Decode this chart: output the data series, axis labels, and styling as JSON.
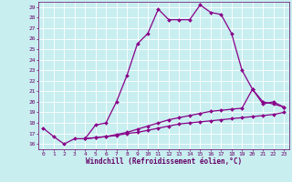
{
  "xlabel": "Windchill (Refroidissement éolien,°C)",
  "bg_color": "#c8eef0",
  "grid_color": "#ffffff",
  "line_color": "#880088",
  "xlim": [
    -0.5,
    23.5
  ],
  "ylim": [
    15.5,
    29.5
  ],
  "xticks": [
    0,
    1,
    2,
    3,
    4,
    5,
    6,
    7,
    8,
    9,
    10,
    11,
    12,
    13,
    14,
    15,
    16,
    17,
    18,
    19,
    20,
    21,
    22,
    23
  ],
  "yticks": [
    16,
    17,
    18,
    19,
    20,
    21,
    22,
    23,
    24,
    25,
    26,
    27,
    28,
    29
  ],
  "line1_x": [
    0,
    1,
    2,
    3,
    4,
    5,
    6,
    7,
    8,
    9,
    10,
    11,
    12,
    13,
    14,
    15,
    16,
    17,
    18,
    19,
    20,
    21,
    22,
    23
  ],
  "line1_y": [
    17.5,
    16.7,
    16.0,
    16.5,
    16.5,
    17.8,
    18.0,
    20.0,
    22.5,
    25.5,
    26.5,
    28.8,
    27.8,
    27.8,
    27.8,
    29.2,
    28.5,
    28.3,
    26.5,
    23.0,
    21.2,
    20.0,
    19.8,
    19.5
  ],
  "line2_x": [
    4,
    5,
    6,
    7,
    8,
    9,
    10,
    11,
    12,
    13,
    14,
    15,
    16,
    17,
    18,
    19,
    20,
    21,
    22,
    23
  ],
  "line2_y": [
    16.5,
    16.6,
    16.7,
    16.9,
    17.1,
    17.4,
    17.7,
    18.0,
    18.3,
    18.5,
    18.7,
    18.9,
    19.1,
    19.2,
    19.3,
    19.4,
    21.2,
    19.8,
    20.0,
    19.5
  ],
  "line3_x": [
    4,
    5,
    6,
    7,
    8,
    9,
    10,
    11,
    12,
    13,
    14,
    15,
    16,
    17,
    18,
    19,
    20,
    21,
    22,
    23
  ],
  "line3_y": [
    16.5,
    16.6,
    16.7,
    16.8,
    17.0,
    17.1,
    17.3,
    17.5,
    17.7,
    17.9,
    18.0,
    18.1,
    18.2,
    18.3,
    18.4,
    18.5,
    18.6,
    18.7,
    18.8,
    19.0
  ],
  "marker": "D",
  "marker_size": 2,
  "linewidth": 0.9,
  "axis_fontsize": 5.5,
  "tick_fontsize": 4.5
}
